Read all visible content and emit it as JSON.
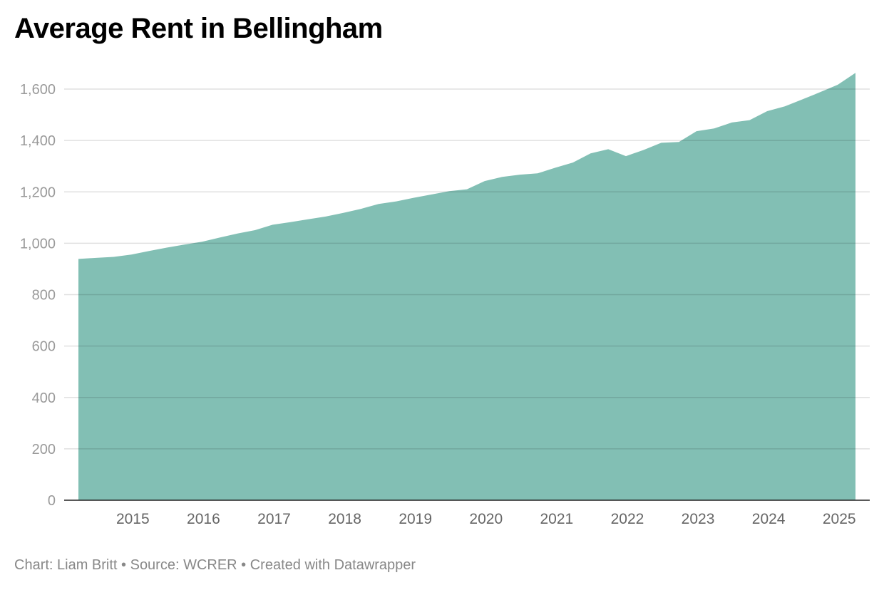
{
  "chart_data": {
    "type": "area",
    "title": "Average Rent in Bellingham",
    "xlabel": "",
    "ylabel": "",
    "ylim": [
      0,
      1700
    ],
    "y_ticks": [
      0,
      200,
      400,
      600,
      800,
      1000,
      1200,
      1400,
      1600
    ],
    "y_tick_labels": [
      "0",
      "200",
      "400",
      "600",
      "800",
      "1,000",
      "1,200",
      "1,400",
      "1,600"
    ],
    "x_ticks": [
      2015,
      2016,
      2017,
      2018,
      2019,
      2020,
      2021,
      2022,
      2023,
      2024,
      2025
    ],
    "x_tick_labels": [
      "2015",
      "2016",
      "2017",
      "2018",
      "2019",
      "2020",
      "2021",
      "2022",
      "2023",
      "2024",
      "2025"
    ],
    "grid": "horizontal",
    "fill_color": "#82bfb4",
    "x": [
      "2014 Q2",
      "2014 Q3",
      "2014 Q4",
      "2015 Q1",
      "2015 Q2",
      "2015 Q3",
      "2015 Q4",
      "2016 Q1",
      "2016 Q2",
      "2016 Q3",
      "2016 Q4",
      "2017 Q1",
      "2017 Q2",
      "2017 Q3",
      "2017 Q4",
      "2018 Q1",
      "2018 Q2",
      "2018 Q3",
      "2018 Q4",
      "2019 Q1",
      "2019 Q2",
      "2019 Q3",
      "2019 Q4",
      "2020 Q1",
      "2020 Q2",
      "2020 Q3",
      "2020 Q4",
      "2021 Q1",
      "2021 Q2",
      "2021 Q3",
      "2021 Q4",
      "2022 Q1",
      "2022 Q2",
      "2022 Q3",
      "2022 Q4",
      "2023 Q1",
      "2023 Q2",
      "2023 Q3",
      "2023 Q4",
      "2024 Q1",
      "2024 Q2",
      "2024 Q3",
      "2024 Q4",
      "2025 Q1",
      "2025 Q2"
    ],
    "values": [
      939,
      943,
      947,
      956,
      970,
      983,
      995,
      1006,
      1022,
      1038,
      1051,
      1072,
      1082,
      1093,
      1104,
      1118,
      1134,
      1153,
      1163,
      1177,
      1190,
      1203,
      1210,
      1242,
      1258,
      1267,
      1272,
      1294,
      1314,
      1350,
      1366,
      1339,
      1363,
      1391,
      1394,
      1436,
      1447,
      1470,
      1479,
      1514,
      1533,
      1560,
      1588,
      1617,
      1663
    ]
  },
  "footer": "Chart: Liam Britt • Source: WCRER • Created with Datawrapper"
}
